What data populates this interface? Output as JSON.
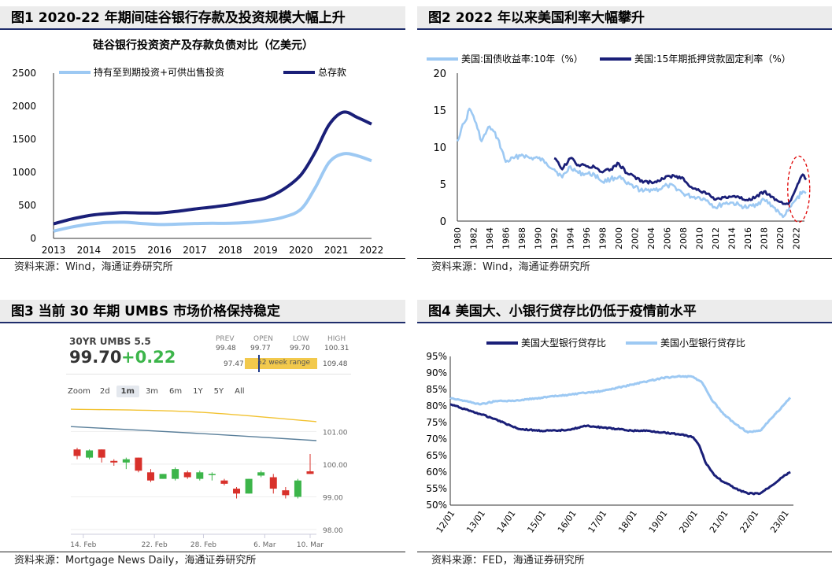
{
  "fig1": {
    "heading": "图1  2020-22 年期间硅谷银行存款及投资规模大幅上升",
    "source": "资料来源：Wind，海通证券研究所",
    "chart_data": {
      "type": "line",
      "title": "硅谷银行投资资产及存款负债对比（亿美元）",
      "x": [
        2013,
        2014,
        2015,
        2016,
        2017,
        2018,
        2019,
        2020,
        2021,
        2022
      ],
      "xlim": [
        2013,
        2022
      ],
      "ylim": [
        0,
        2500
      ],
      "yticks": [
        0,
        500,
        1000,
        1500,
        2000,
        2500
      ],
      "legend_position": "top",
      "series": [
        {
          "name": "持有至到期投资+可供出售投资",
          "color": "#9dc9f3",
          "points": [
            [
              2013,
              110
            ],
            [
              2013.5,
              170
            ],
            [
              2014,
              215
            ],
            [
              2014.5,
              240
            ],
            [
              2015,
              245
            ],
            [
              2015.5,
              225
            ],
            [
              2016,
              210
            ],
            [
              2016.5,
              215
            ],
            [
              2017,
              225
            ],
            [
              2017.5,
              228
            ],
            [
              2018,
              228
            ],
            [
              2018.5,
              240
            ],
            [
              2019,
              270
            ],
            [
              2019.5,
              320
            ],
            [
              2020,
              440
            ],
            [
              2020.4,
              760
            ],
            [
              2020.8,
              1150
            ],
            [
              2021.2,
              1280
            ],
            [
              2021.6,
              1250
            ],
            [
              2022,
              1175
            ]
          ]
        },
        {
          "name": "总存款",
          "color": "#1a1f78",
          "points": [
            [
              2013,
              220
            ],
            [
              2013.5,
              290
            ],
            [
              2014,
              345
            ],
            [
              2014.5,
              375
            ],
            [
              2015,
              390
            ],
            [
              2015.5,
              385
            ],
            [
              2016,
              385
            ],
            [
              2016.5,
              410
            ],
            [
              2017,
              445
            ],
            [
              2017.5,
              475
            ],
            [
              2018,
              510
            ],
            [
              2018.5,
              560
            ],
            [
              2019,
              610
            ],
            [
              2019.5,
              740
            ],
            [
              2020,
              960
            ],
            [
              2020.4,
              1300
            ],
            [
              2020.8,
              1720
            ],
            [
              2021.2,
              1910
            ],
            [
              2021.6,
              1830
            ],
            [
              2022,
              1730
            ]
          ]
        }
      ]
    }
  },
  "fig2": {
    "heading": "图2  2022 年以来美国利率大幅攀升",
    "source": "资料来源：Wind，海通证券研究所",
    "chart_data": {
      "type": "line",
      "xlim": [
        1980,
        2023
      ],
      "ylim": [
        0,
        20
      ],
      "yticks": [
        0,
        5,
        10,
        15,
        20
      ],
      "xticks": [
        1980,
        1982,
        1984,
        1986,
        1988,
        1990,
        1992,
        1994,
        1996,
        1998,
        2000,
        2002,
        2004,
        2006,
        2008,
        2010,
        2012,
        2014,
        2016,
        2018,
        2020,
        2022
      ],
      "legend_position": "top",
      "highlight": {
        "x_center": 2022,
        "y_center": 4,
        "color": "#e00000"
      },
      "series": [
        {
          "name": "美国:国债收益率:10年（%）",
          "color": "#9dc9f3",
          "points": [
            [
              1980,
              10.8
            ],
            [
              1980.5,
              12.5
            ],
            [
              1981,
              13.5
            ],
            [
              1981.5,
              15.2
            ],
            [
              1982,
              14.2
            ],
            [
              1982.5,
              12.5
            ],
            [
              1983,
              10.8
            ],
            [
              1984,
              12.8
            ],
            [
              1985,
              11.2
            ],
            [
              1986,
              8.0
            ],
            [
              1987,
              8.5
            ],
            [
              1988,
              9.0
            ],
            [
              1989,
              8.5
            ],
            [
              1990,
              8.5
            ],
            [
              1991,
              7.9
            ],
            [
              1992,
              7.0
            ],
            [
              1993,
              5.9
            ],
            [
              1994,
              7.4
            ],
            [
              1995,
              6.5
            ],
            [
              1996,
              6.4
            ],
            [
              1997,
              6.3
            ],
            [
              1998,
              5.3
            ],
            [
              1999,
              5.7
            ],
            [
              2000,
              6.0
            ],
            [
              2001,
              5.0
            ],
            [
              2002,
              4.6
            ],
            [
              2003,
              4.0
            ],
            [
              2004,
              4.3
            ],
            [
              2005,
              4.3
            ],
            [
              2006,
              4.8
            ],
            [
              2007,
              4.6
            ],
            [
              2008,
              3.7
            ],
            [
              2009,
              3.3
            ],
            [
              2010,
              3.2
            ],
            [
              2011,
              2.8
            ],
            [
              2012,
              1.8
            ],
            [
              2013,
              2.4
            ],
            [
              2014,
              2.5
            ],
            [
              2015,
              2.1
            ],
            [
              2016,
              1.8
            ],
            [
              2017,
              2.3
            ],
            [
              2018,
              2.9
            ],
            [
              2019,
              2.1
            ],
            [
              2020,
              0.9
            ],
            [
              2020.5,
              0.7
            ],
            [
              2021,
              1.4
            ],
            [
              2022,
              3.0
            ],
            [
              2022.8,
              4.0
            ],
            [
              2023.2,
              3.8
            ]
          ]
        },
        {
          "name": "美国:15年期抵押贷款固定利率（%）",
          "color": "#1a1f78",
          "points": [
            [
              1992,
              8.5
            ],
            [
              1993,
              7.0
            ],
            [
              1994,
              8.5
            ],
            [
              1995,
              7.6
            ],
            [
              1996,
              7.4
            ],
            [
              1997,
              7.3
            ],
            [
              1998,
              6.6
            ],
            [
              1999,
              7.0
            ],
            [
              2000,
              7.8
            ],
            [
              2001,
              6.5
            ],
            [
              2002,
              6.0
            ],
            [
              2003,
              5.2
            ],
            [
              2004,
              5.3
            ],
            [
              2005,
              5.4
            ],
            [
              2006,
              6.1
            ],
            [
              2007,
              6.0
            ],
            [
              2008,
              5.8
            ],
            [
              2009,
              4.6
            ],
            [
              2010,
              4.1
            ],
            [
              2011,
              3.7
            ],
            [
              2012,
              2.9
            ],
            [
              2013,
              3.2
            ],
            [
              2014,
              3.3
            ],
            [
              2015,
              3.1
            ],
            [
              2016,
              2.8
            ],
            [
              2017,
              3.3
            ],
            [
              2018,
              4.0
            ],
            [
              2019,
              3.3
            ],
            [
              2020,
              2.6
            ],
            [
              2021,
              2.3
            ],
            [
              2022,
              4.5
            ],
            [
              2022.8,
              6.3
            ],
            [
              2023.2,
              5.6
            ]
          ]
        }
      ]
    }
  },
  "fig3": {
    "heading": "图3  当前 30 年期 UMBS 市场价格保持稳定",
    "source": "资料来源：Mortgage News Daily，海通证券研究所",
    "quote": {
      "name": "30YR UMBS 5.5",
      "price": "99.70",
      "change": "+0.22",
      "prev_label": "PREV",
      "prev_value": "99.48",
      "open_label": "OPEN",
      "open_value": "99.77",
      "low_label": "LOW",
      "low_value": "99.70",
      "high_label": "HIGH",
      "high_value": "100.31",
      "range_low": "97.47",
      "range_label": "52 week range",
      "range_high": "109.48",
      "range_position": 0.19
    },
    "zoom": {
      "label": "Zoom",
      "options": [
        "2d",
        "1m",
        "3m",
        "6m",
        "1Y",
        "5Y",
        "All"
      ],
      "active": "1m"
    },
    "chart_data": {
      "type": "candlestick",
      "ylim": [
        98,
        101.5
      ],
      "yticks": [
        "101.00",
        "100.00",
        "99.00",
        "98.00"
      ],
      "xticks": [
        "14. Feb",
        "22. Feb",
        "28. Feb",
        "6. Mar",
        "10. Mar"
      ],
      "xtick_index": [
        1.5,
        7.3,
        11.3,
        16.3,
        20
      ],
      "colors": {
        "up": "#3cb54a",
        "down": "#d8312b",
        "ma1": "#f2c230",
        "ma2": "#5a7f9a"
      },
      "ma1": [
        [
          0,
          101.68
        ],
        [
          10,
          101.6
        ],
        [
          20,
          101.3
        ]
      ],
      "ma2": [
        [
          0,
          101.15
        ],
        [
          10,
          100.95
        ],
        [
          20,
          100.72
        ]
      ],
      "candles": [
        {
          "o": 100.45,
          "h": 100.5,
          "l": 100.15,
          "c": 100.25
        },
        {
          "o": 100.2,
          "h": 100.45,
          "l": 100.15,
          "c": 100.42
        },
        {
          "o": 100.45,
          "h": 100.45,
          "l": 100.05,
          "c": 100.2
        },
        {
          "o": 100.1,
          "h": 100.15,
          "l": 99.95,
          "c": 100.05
        },
        {
          "o": 100.05,
          "h": 100.2,
          "l": 99.85,
          "c": 100.15
        },
        {
          "o": 100.2,
          "h": 100.2,
          "l": 99.75,
          "c": 99.8
        },
        {
          "o": 99.75,
          "h": 99.85,
          "l": 99.45,
          "c": 99.5
        },
        {
          "o": 99.55,
          "h": 99.7,
          "l": 99.55,
          "c": 99.7
        },
        {
          "o": 99.55,
          "h": 99.9,
          "l": 99.5,
          "c": 99.85
        },
        {
          "o": 99.75,
          "h": 99.8,
          "l": 99.55,
          "c": 99.6
        },
        {
          "o": 99.55,
          "h": 99.8,
          "l": 99.5,
          "c": 99.75
        },
        {
          "o": 99.7,
          "h": 99.75,
          "l": 99.5,
          "c": 99.7
        },
        {
          "o": 99.5,
          "h": 99.55,
          "l": 99.35,
          "c": 99.4
        },
        {
          "o": 99.25,
          "h": 99.3,
          "l": 98.95,
          "c": 99.1
        },
        {
          "o": 99.1,
          "h": 99.55,
          "l": 99.1,
          "c": 99.55
        },
        {
          "o": 99.65,
          "h": 99.8,
          "l": 99.6,
          "c": 99.75
        },
        {
          "o": 99.6,
          "h": 99.7,
          "l": 99.1,
          "c": 99.25
        },
        {
          "o": 99.2,
          "h": 99.3,
          "l": 98.95,
          "c": 99.05
        },
        {
          "o": 99.0,
          "h": 99.55,
          "l": 98.95,
          "c": 99.5
        },
        {
          "o": 99.78,
          "h": 100.31,
          "l": 99.7,
          "c": 99.7
        }
      ]
    }
  },
  "fig4": {
    "heading": "图4  美国大、小银行贷存比仍低于疫情前水平",
    "source": "资料来源：FED，海通证券研究所",
    "chart_data": {
      "type": "line",
      "xlim": [
        2012,
        2023.3
      ],
      "ylim": [
        50,
        95
      ],
      "yticks": [
        "50%",
        "55%",
        "60%",
        "65%",
        "70%",
        "75%",
        "80%",
        "85%",
        "90%",
        "95%"
      ],
      "xticks": [
        "12/01",
        "13/01",
        "14/01",
        "15/01",
        "16/01",
        "17/01",
        "18/01",
        "19/01",
        "20/01",
        "21/01",
        "22/01",
        "23/01"
      ],
      "legend_position": "top",
      "series": [
        {
          "name": "美国大型银行贷存比",
          "color": "#1a1f78",
          "points": [
            [
              2012,
              80.5
            ],
            [
              2012.5,
              79
            ],
            [
              2013,
              77.5
            ],
            [
              2013.5,
              76
            ],
            [
              2014,
              74
            ],
            [
              2014.3,
              73
            ],
            [
              2015,
              72.5
            ],
            [
              2015.5,
              72.5
            ],
            [
              2016,
              73
            ],
            [
              2016.5,
              74
            ],
            [
              2017,
              73.5
            ],
            [
              2017.5,
              73
            ],
            [
              2018,
              72.5
            ],
            [
              2018.5,
              72.5
            ],
            [
              2019,
              72
            ],
            [
              2019.5,
              71.5
            ],
            [
              2019.8,
              71
            ],
            [
              2020,
              70.5
            ],
            [
              2020.2,
              68
            ],
            [
              2020.4,
              63
            ],
            [
              2020.7,
              59
            ],
            [
              2021,
              57
            ],
            [
              2021.4,
              55
            ],
            [
              2021.8,
              53.5
            ],
            [
              2022.2,
              53.5
            ],
            [
              2022.6,
              56
            ],
            [
              2023,
              59
            ],
            [
              2023.2,
              60
            ]
          ]
        },
        {
          "name": "美国小型银行贷存比",
          "color": "#9dc9f3",
          "points": [
            [
              2012,
              82.5
            ],
            [
              2012.5,
              81.5
            ],
            [
              2013,
              80.5
            ],
            [
              2013.5,
              81.5
            ],
            [
              2014,
              81.5
            ],
            [
              2014.5,
              82
            ],
            [
              2015,
              82.5
            ],
            [
              2015.5,
              83
            ],
            [
              2016,
              83.5
            ],
            [
              2016.5,
              84
            ],
            [
              2017,
              84.5
            ],
            [
              2017.5,
              85.5
            ],
            [
              2018,
              86.5
            ],
            [
              2018.5,
              87.5
            ],
            [
              2019,
              88.5
            ],
            [
              2019.5,
              89
            ],
            [
              2020,
              88.8
            ],
            [
              2020.3,
              87
            ],
            [
              2020.6,
              82
            ],
            [
              2021,
              77.5
            ],
            [
              2021.4,
              74.5
            ],
            [
              2021.8,
              72
            ],
            [
              2022.2,
              72.5
            ],
            [
              2022.6,
              76.5
            ],
            [
              2023,
              80.5
            ],
            [
              2023.2,
              82.5
            ]
          ]
        }
      ]
    }
  }
}
